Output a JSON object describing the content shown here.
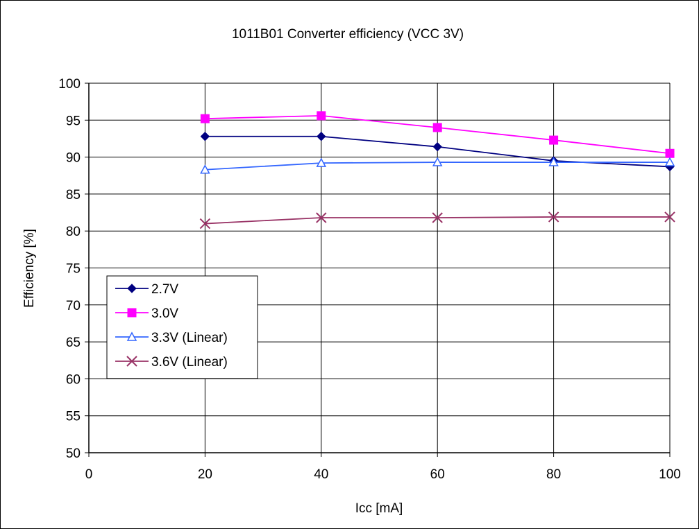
{
  "chart_data": {
    "type": "line",
    "title": "1011B01 Converter efficiency (VCC 3V)",
    "xlabel": "Icc [mA]",
    "ylabel": "Efficiency [%]",
    "xlim": [
      0,
      100
    ],
    "ylim": [
      50,
      100
    ],
    "x_ticks": [
      "0",
      "20",
      "40",
      "60",
      "80",
      "100"
    ],
    "y_ticks": [
      "50",
      "55",
      "60",
      "65",
      "70",
      "75",
      "80",
      "85",
      "90",
      "95",
      "100"
    ],
    "grid": true,
    "legend_position": "left",
    "x": [
      20,
      40,
      60,
      80,
      100
    ],
    "series": [
      {
        "name": "2.7V",
        "values": [
          92.8,
          92.8,
          91.4,
          89.5,
          88.7
        ],
        "color": "#000080",
        "marker": "diamond"
      },
      {
        "name": "3.0V",
        "values": [
          95.2,
          95.6,
          94.0,
          92.3,
          90.5
        ],
        "color": "#FF00FF",
        "marker": "square"
      },
      {
        "name": "3.3V (Linear)",
        "values": [
          88.3,
          89.2,
          89.3,
          89.3,
          89.3
        ],
        "color": "#3366FF",
        "marker": "triangle-open"
      },
      {
        "name": "3.6V (Linear)",
        "values": [
          81.0,
          81.8,
          81.8,
          81.9,
          81.9
        ],
        "color": "#993366",
        "marker": "x"
      }
    ]
  }
}
